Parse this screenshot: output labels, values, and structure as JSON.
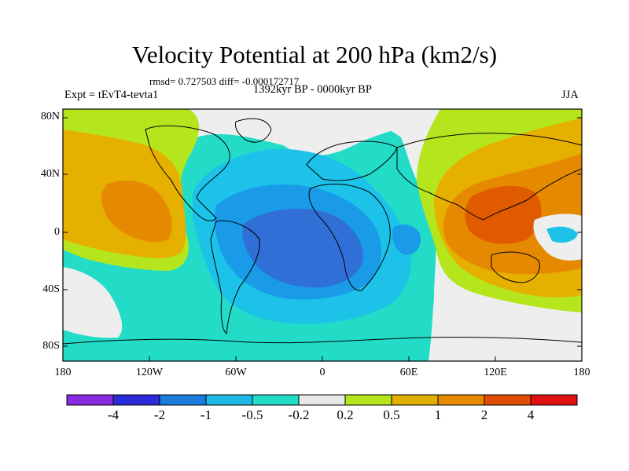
{
  "title": "Velocity Potential at 200 hPa (km2/s)",
  "stats": "rmsd= 0.727503 diff= -0.000172717",
  "left_label": "Expt = tEvT4-tevta1",
  "center_label": "1392kyr BP - 0000kyr BP",
  "right_label": "JJA",
  "lat_ticks": [
    "80N",
    "40N",
    "0",
    "40S",
    "80S"
  ],
  "lon_ticks": [
    "180",
    "120W",
    "60W",
    "0",
    "60E",
    "120E",
    "180"
  ],
  "colorbar": {
    "colors": [
      "#8a2be2",
      "#2b2bd9",
      "#1a7ddb",
      "#1cb8e6",
      "#22dcc8",
      "#e8e8e8",
      "#b5e61d",
      "#e0b000",
      "#e88a00",
      "#e04d00",
      "#e01010"
    ],
    "labels": [
      "-4",
      "-2",
      "-1",
      "-0.5",
      "-0.2",
      "0.2",
      "0.5",
      "1",
      "2",
      "4"
    ]
  },
  "legend_colors": {
    "dark_blue": "#2f6fd6",
    "mid_blue": "#1a9be8",
    "light_blue": "#1cc2e8",
    "teal": "#22dcc8",
    "white": "#eeeeee",
    "lime": "#b5e61d",
    "gold": "#e6b000",
    "orange": "#e58a00",
    "red_orange": "#e05a00"
  }
}
